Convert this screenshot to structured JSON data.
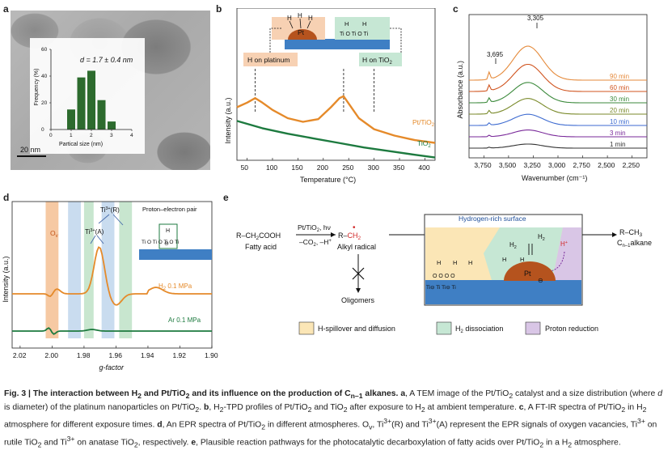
{
  "panel_labels": {
    "a": "a",
    "b": "b",
    "c": "c",
    "d": "d",
    "e": "e"
  },
  "panel_a": {
    "inset_eq": "d = 1.7 ± 0.4 nm",
    "scale": "20 nm"
  },
  "panel_b": {
    "pt_label": "Pt",
    "h_on_platinum": "H on platinum",
    "h_on_tio2": "H on TiO",
    "h_on_tio2_sub": "2",
    "series_pt": "Pt/TiO",
    "series_pt_sub": "2",
    "series_tio2": "TiO",
    "series_tio2_sub": "2"
  },
  "panel_c": {
    "peak1": "3,695",
    "peak2": "3,305",
    "series_labels": [
      "90 min",
      "60 min",
      "30 min",
      "20 min",
      "10 min",
      "3 min",
      "1 min"
    ],
    "series_colors": [
      "#e58a3b",
      "#d0541f",
      "#3c8a3c",
      "#7a8a2a",
      "#3c6ad0",
      "#7a2a9a",
      "#333333"
    ]
  },
  "panel_d": {
    "ov": "O",
    "ov_sub": "v",
    "ti_r": "Ti",
    "ti_r_sup": "3+",
    "ti_r_tail": "(R)",
    "ti_a": "Ti",
    "ti_a_sup": "3+",
    "ti_a_tail": "(A)",
    "pep": "Proton–electron pair",
    "h2_label": "H",
    "h2_sub": "2",
    "h2_tail": " 0.1 MPa",
    "ar_label": "Ar 0.1 MPa"
  },
  "panel_e": {
    "fatty_acid_formula": "R–CH",
    "fatty_acid_formula_sub": "2",
    "fatty_acid_formula_tail": "COOH",
    "fatty_acid": "Fatty acid",
    "cond_top": "Pt/TiO",
    "cond_top_sub": "2",
    "cond_top_tail": ", hν",
    "cond_bot": "–CO",
    "cond_bot_sub": "2",
    "cond_bot_tail": ", –H",
    "cond_bot_sup": "+",
    "radical_formula": "R–",
    "radical_formula_tail": "CH",
    "radical_formula_sub": "2",
    "alkyl_radical": "Alkyl radical",
    "oligomers": "Oligomers",
    "surface_title": "Hydrogen-rich surface",
    "product_formula": "R–CH",
    "product_formula_sub": "3",
    "product_name": "C",
    "product_name_sub": "n–1",
    "product_name_tail": "alkane",
    "legend_spill": "H-spillover and diffusion",
    "legend_diss": "H",
    "legend_diss_sub": "2",
    "legend_diss_tail": " dissociation",
    "legend_prot": "Proton reduction"
  },
  "caption": {
    "title_pre": "Fig. 3 | The interaction between H",
    "title_sub1": "2",
    "title_mid": " and Pt/TiO",
    "title_sub2": "2",
    "title_mid2": " and its influence on the production of C",
    "title_sub3": "n–1",
    "title_end": " alkanes.",
    "a_lbl": "a",
    "a_txt": ", A TEM image of the Pt/TiO",
    "a_sub": "2",
    "a_txt2": " catalyst and a size distribution (where ",
    "a_d": "d",
    "a_txt3": " is diameter) of the platinum nanoparticles on Pt/TiO",
    "a_sub2": "2",
    "a_end": ". ",
    "b_lbl": "b",
    "b_txt": ", H",
    "b_sub1": "2",
    "b_txt2": "-TPD profiles of Pt/TiO",
    "b_sub2": "2",
    "b_txt3": " and TiO",
    "b_sub3": "2",
    "b_txt4": " after exposure to H",
    "b_sub4": "2",
    "b_txt5": " at ambient temperature. ",
    "c_lbl": "c",
    "c_txt": ", A FT-IR spectra of Pt/TiO",
    "c_sub": "2",
    "c_txt2": " in H",
    "c_sub2": "2",
    "c_txt3": " atmosphere for different exposure times. ",
    "d_lbl": "d",
    "d_txt": ", An EPR spectra of Pt/TiO",
    "d_sub": "2",
    "d_txt2": " in different atmospheres. O",
    "d_sub2": "v",
    "d_txt3": ", Ti",
    "d_sup1": "3+",
    "d_txt4": "(R) and Ti",
    "d_sup2": "3+",
    "d_txt5": "(A) represent the EPR signals of oxygen vacancies, Ti",
    "d_sup3": "3+",
    "d_txt6": " on rutile TiO",
    "d_sub3": "2",
    "d_txt7": " and Ti",
    "d_sup4": "3+",
    "d_txt8": " on anatase TiO",
    "d_sub4": "2",
    "d_txt9": ", respectively. ",
    "e_lbl": "e",
    "e_txt": ", Plausible reaction pathways for the photocatalytic decarboxylation of fatty acids over Pt/TiO",
    "e_sub": "2",
    "e_txt2": " in a H",
    "e_sub2": "2",
    "e_txt3": " atmosphere."
  },
  "chart_data": [
    {
      "id": "a-inset",
      "type": "bar",
      "xlabel": "Partical size (nm)",
      "ylabel": "Frequency (%)",
      "xlim": [
        0,
        4
      ],
      "ylim": [
        0,
        60
      ],
      "xticks": [
        "0",
        "1",
        "2",
        "3",
        "4"
      ],
      "yticks": [
        "0",
        "20",
        "40",
        "60"
      ],
      "x": [
        1.0,
        1.5,
        2.0,
        2.5,
        3.0
      ],
      "values": [
        15,
        39,
        44,
        22,
        6
      ]
    },
    {
      "id": "b",
      "type": "line",
      "xlabel": "Temperature (°C)",
      "ylabel": "Intensity (a.u.)",
      "xlim": [
        30,
        420
      ],
      "xticks": [
        "50",
        "100",
        "150",
        "200",
        "250",
        "300",
        "350",
        "400"
      ],
      "series": [
        {
          "name": "Pt/TiO2",
          "color": "#e58a2a",
          "x": [
            30,
            50,
            66,
            80,
            100,
            130,
            160,
            190,
            215,
            232,
            240,
            250,
            270,
            300,
            340,
            380,
            420
          ],
          "y": [
            0.58,
            0.63,
            0.68,
            0.63,
            0.55,
            0.46,
            0.42,
            0.45,
            0.58,
            0.68,
            0.7,
            0.62,
            0.46,
            0.34,
            0.27,
            0.22,
            0.19
          ]
        },
        {
          "name": "TiO2",
          "color": "#1d7a3f",
          "x": [
            30,
            80,
            130,
            180,
            230,
            280,
            330,
            380,
            420
          ],
          "y": [
            0.43,
            0.35,
            0.29,
            0.24,
            0.19,
            0.14,
            0.1,
            0.06,
            0.03
          ]
        }
      ]
    },
    {
      "id": "c",
      "type": "line",
      "xlabel": "Wavenumber (cm⁻¹)",
      "ylabel": "Absorbance (a.u.)",
      "xlim": [
        3900,
        2100
      ],
      "xticks": [
        "3,750",
        "3,500",
        "3,250",
        "3,000",
        "2,750",
        "2,500",
        "2,250"
      ],
      "series": [
        {
          "name": "90 min",
          "peak": 1.0
        },
        {
          "name": "60 min",
          "peak": 0.8
        },
        {
          "name": "30 min",
          "peak": 0.6
        },
        {
          "name": "20 min",
          "peak": 0.46
        },
        {
          "name": "10 min",
          "peak": 0.33
        },
        {
          "name": "3 min",
          "peak": 0.2
        },
        {
          "name": "1 min",
          "peak": 0.12
        }
      ]
    },
    {
      "id": "d",
      "type": "line",
      "xlabel": "g-factor",
      "ylabel": "Intensity (a.u.)",
      "xlim": [
        2.025,
        1.9
      ],
      "xticks": [
        "2.02",
        "2.00",
        "1.98",
        "1.96",
        "1.94",
        "1.92",
        "1.90"
      ],
      "bands": [
        {
          "label": "Ov",
          "from": 2.004,
          "to": 1.996,
          "color": "#f6c9a3"
        },
        {
          "label": "Ti3+(A)",
          "from": 1.99,
          "to": 1.982,
          "color": "#c9dcef"
        },
        {
          "label": "Ti3+(A)b",
          "from": 1.98,
          "to": 1.974,
          "color": "#c8e6cf"
        },
        {
          "label": "Ti3+(R)",
          "from": 1.969,
          "to": 1.961,
          "color": "#c9dcef"
        },
        {
          "label": "Ti3+(R)b",
          "from": 1.958,
          "to": 1.95,
          "color": "#c8e6cf"
        }
      ],
      "series": [
        {
          "name": "H2 0.1 MPa",
          "color": "#e58a2a"
        },
        {
          "name": "Ar 0.1 MPa",
          "color": "#1d7a3f"
        }
      ]
    }
  ]
}
